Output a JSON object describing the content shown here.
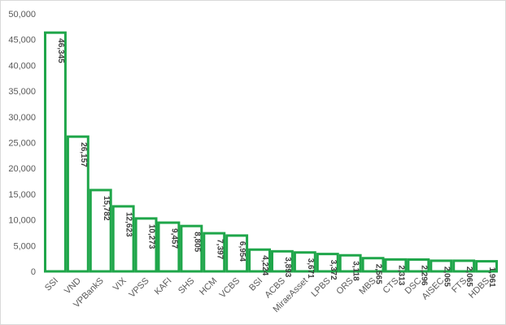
{
  "chart_data": {
    "type": "bar",
    "title": "",
    "xlabel": "",
    "ylabel": "",
    "ylim": [
      0,
      50000
    ],
    "yticks": [
      0,
      5000,
      10000,
      15000,
      20000,
      25000,
      30000,
      35000,
      40000,
      45000,
      50000
    ],
    "ytick_labels": [
      "0",
      "5,000",
      "10,000",
      "15,000",
      "20,000",
      "25,000",
      "30,000",
      "35,000",
      "40,000",
      "45,000",
      "50,000"
    ],
    "grid": false,
    "legend": "none",
    "bar_fill": "#ffffff",
    "bar_stroke": "#1fa64a",
    "categories": [
      "SSI",
      "VND",
      "VPBankS",
      "VIX",
      "VPSS",
      "KAFI",
      "SHS",
      "HCM",
      "VCBS",
      "BSI",
      "ACBS",
      "MiraeAsset",
      "LPBS",
      "ORS",
      "MBS",
      "CTS",
      "DSC",
      "AISEC",
      "FTS",
      "HDBS"
    ],
    "values": [
      46345,
      26157,
      15782,
      12623,
      10273,
      9457,
      8805,
      7397,
      6954,
      4224,
      3893,
      3671,
      3372,
      3118,
      2565,
      2313,
      2296,
      2065,
      2065,
      1961
    ],
    "value_labels": [
      "46,345",
      "26,157",
      "15,782",
      "12,623",
      "10,273",
      "9,457",
      "8,805",
      "7,397",
      "6,954",
      "4,224",
      "3,893",
      "3,671",
      "3,372",
      "3,118",
      "2,565",
      "2,313",
      "2,296",
      "2,065",
      "2,065",
      "1,961"
    ]
  }
}
